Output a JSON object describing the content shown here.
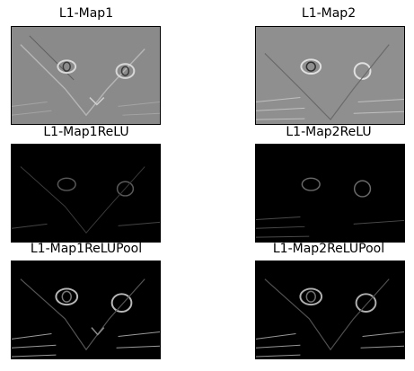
{
  "panels": [
    {
      "title": "L1-Map1",
      "style": "gray"
    },
    {
      "title": "L1-Map2",
      "style": "gray"
    },
    {
      "title": "L1-Map1ReLU",
      "style": "dark"
    },
    {
      "title": "L1-Map2ReLU",
      "style": "dark"
    },
    {
      "title": "L1-Map1ReLUPool",
      "style": "pool"
    },
    {
      "title": "L1-Map2ReLUPool",
      "style": "pool"
    }
  ],
  "colors": {
    "gray_bg": "#8a8a8a",
    "dark_bg": "#000000",
    "edge_light": "#d8d8d8",
    "edge_dark": "#3a3a3a"
  }
}
